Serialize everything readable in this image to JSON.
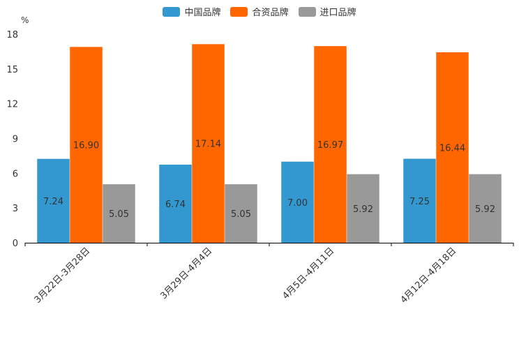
{
  "chart_data": {
    "type": "bar",
    "ylabel": "%",
    "ylim": [
      0,
      18
    ],
    "yticks": [
      0,
      3,
      6,
      9,
      12,
      15,
      18
    ],
    "grid": false,
    "legend_position": "top-center",
    "categories": [
      "3月22日-3月28日",
      "3月29日-4月4日",
      "4月5日-4月11日",
      "4月12日-4月18日"
    ],
    "series": [
      {
        "name": "中国品牌",
        "color": "#3398d0",
        "values": [
          7.24,
          6.74,
          7.0,
          7.25
        ],
        "labels": [
          "7.24",
          "6.74",
          "7.00",
          "7.25"
        ]
      },
      {
        "name": "合资品牌",
        "color": "#ff6600",
        "values": [
          16.9,
          17.14,
          16.97,
          16.44
        ],
        "labels": [
          "16.90",
          "17.14",
          "16.97",
          "16.44"
        ]
      },
      {
        "name": "进口品牌",
        "color": "#999999",
        "values": [
          5.05,
          5.05,
          5.92,
          5.92
        ],
        "labels": [
          "5.05",
          "5.05",
          "5.92",
          "5.92"
        ]
      }
    ]
  }
}
